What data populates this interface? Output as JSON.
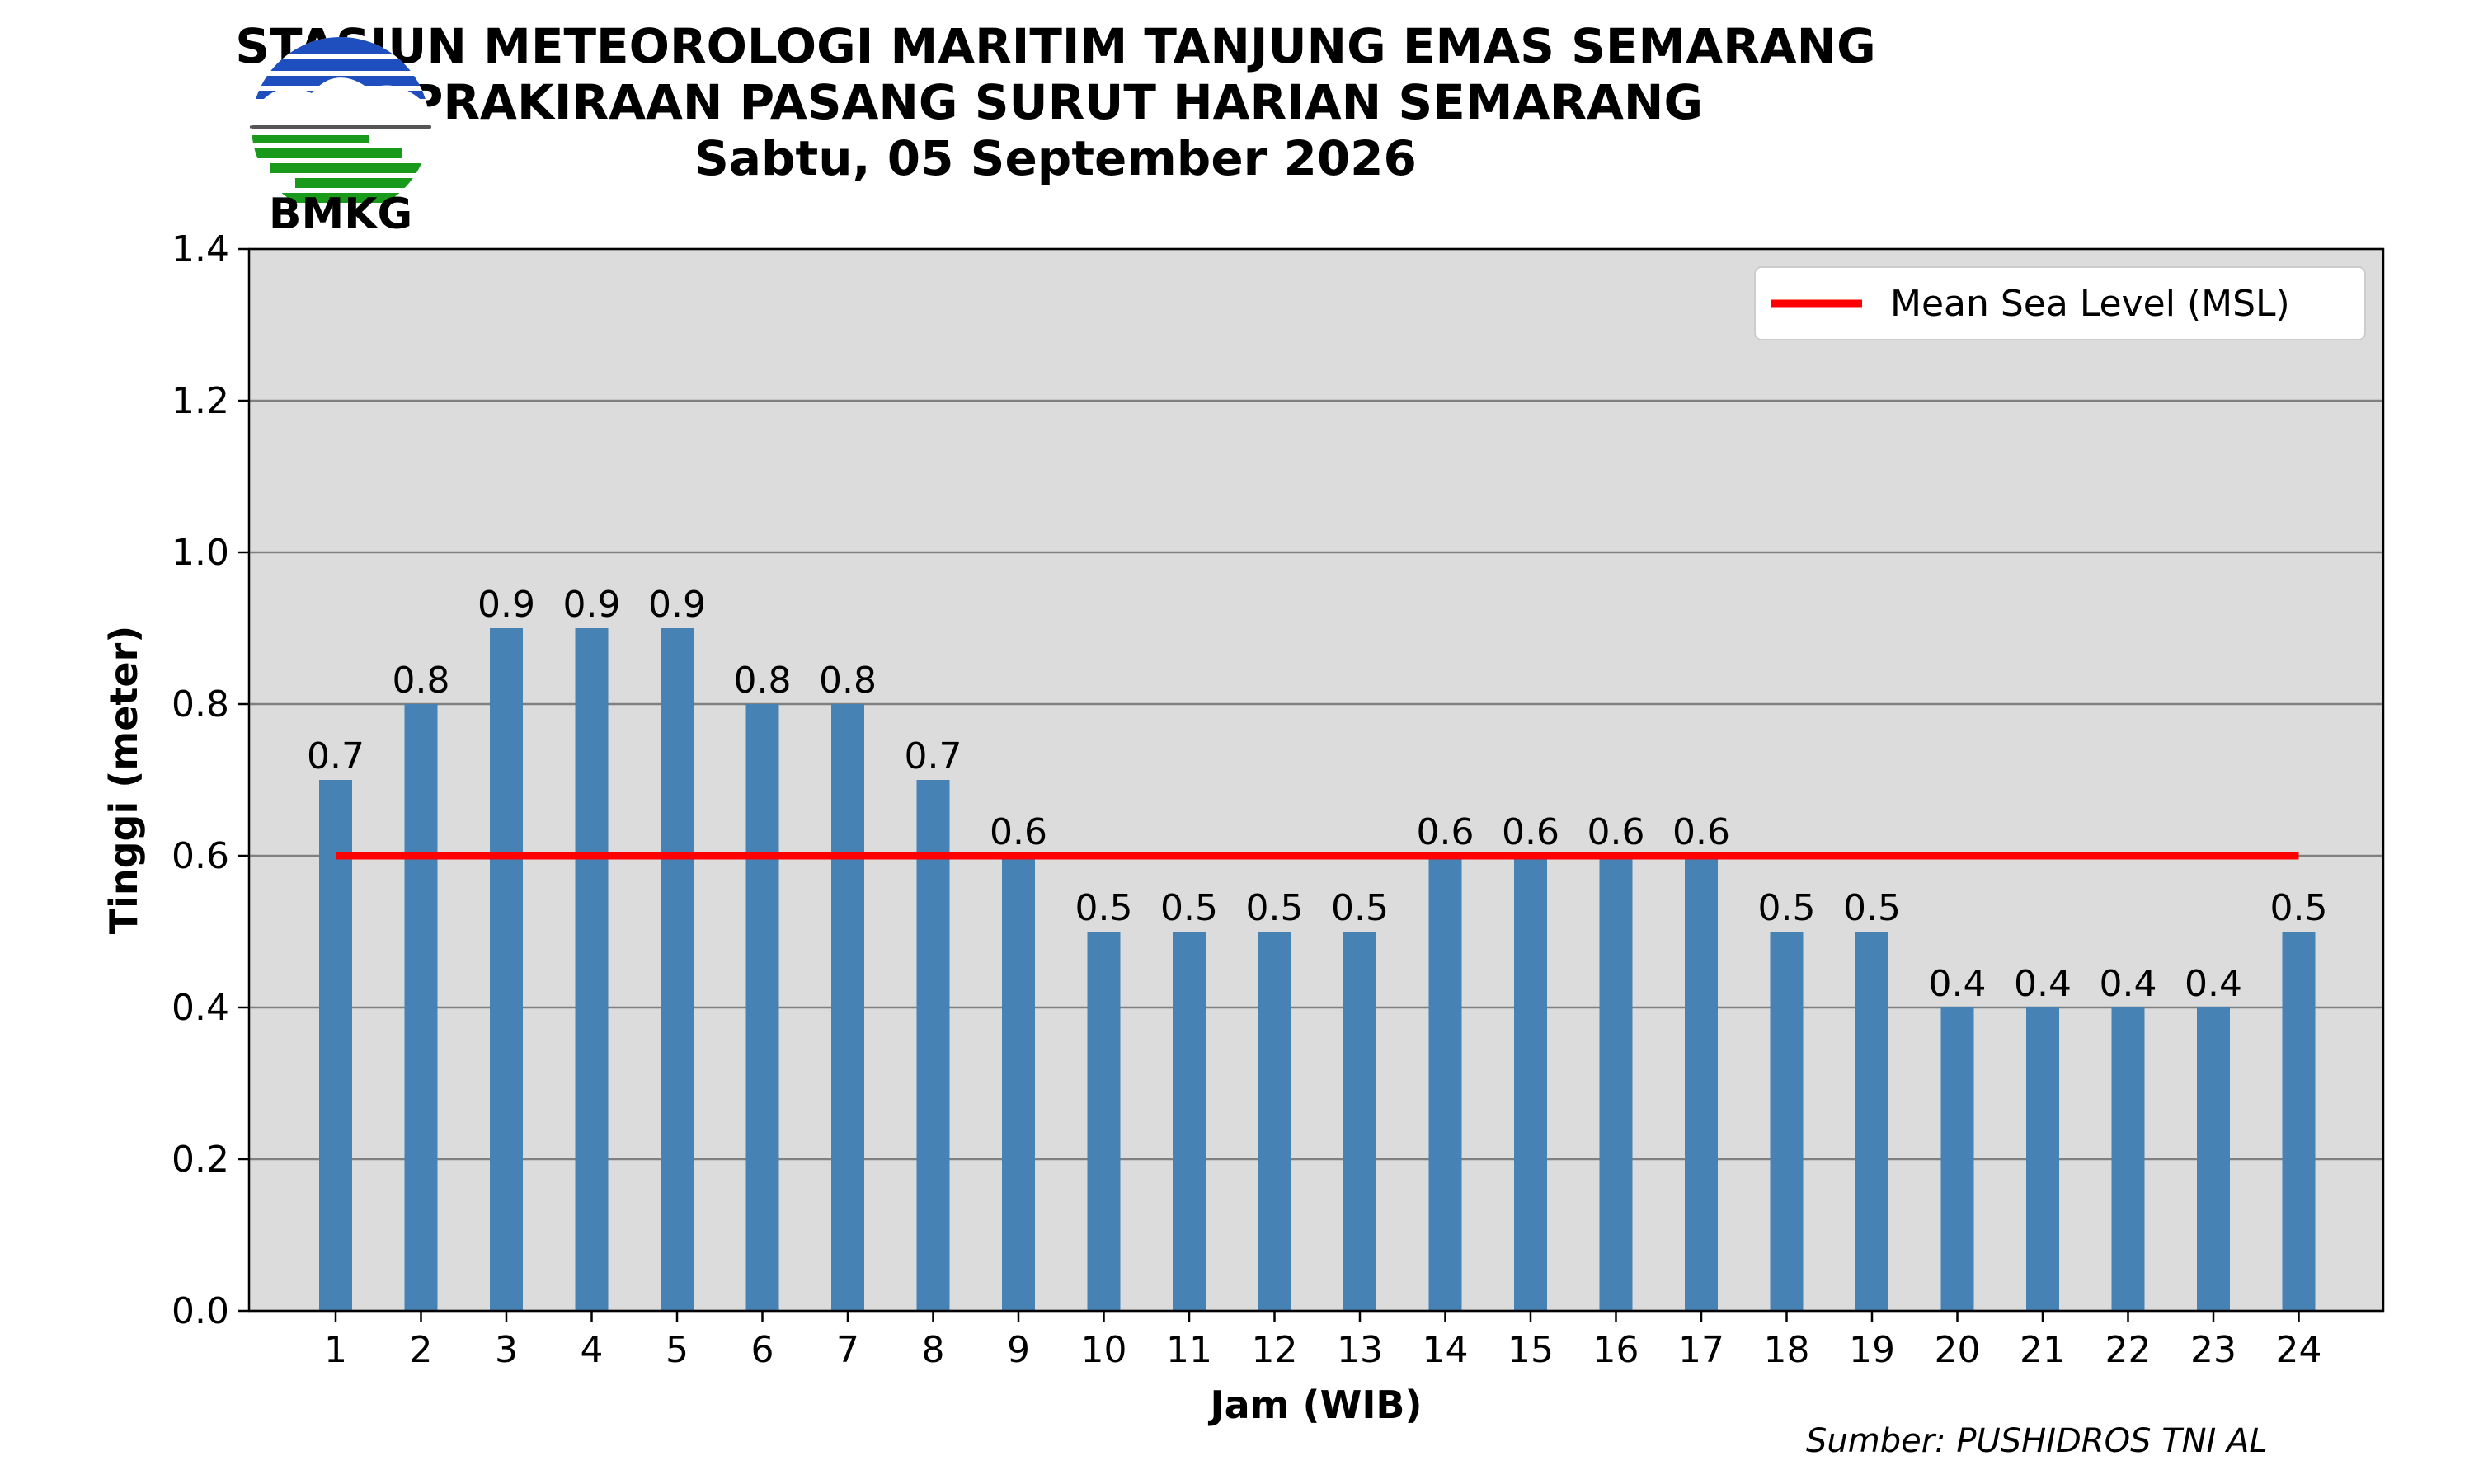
{
  "header": {
    "title_line1": "STASIUN METEOROLOGI MARITIM TANJUNG EMAS SEMARANG",
    "title_line2": "PRAKIRAAN PASANG SURUT HARIAN SEMARANG",
    "title_line3": "Sabtu, 05 September 2026",
    "logo_text": "BMKG"
  },
  "source_note": "Sumber: PUSHIDROS TNI AL",
  "colors": {
    "bar": "#4682b4",
    "msl": "#ff0000",
    "plot_bg": "#dcdcdc",
    "grid": "#808080",
    "logo_blue": "#1f4fbf",
    "logo_green": "#1a9a1a"
  },
  "chart_data": {
    "type": "bar",
    "categories": [
      "1",
      "2",
      "3",
      "4",
      "5",
      "6",
      "7",
      "8",
      "9",
      "10",
      "11",
      "12",
      "13",
      "14",
      "15",
      "16",
      "17",
      "18",
      "19",
      "20",
      "21",
      "22",
      "23",
      "24"
    ],
    "series": [
      {
        "name": "",
        "values": [
          0.7,
          0.8,
          0.9,
          0.9,
          0.9,
          0.8,
          0.8,
          0.7,
          0.6,
          0.5,
          0.5,
          0.5,
          0.5,
          0.6,
          0.6,
          0.6,
          0.6,
          0.5,
          0.5,
          0.4,
          0.4,
          0.4,
          0.4,
          0.5
        ]
      }
    ],
    "data_labels": [
      "0.7",
      "0.8",
      "0.9",
      "0.9",
      "0.9",
      "0.8",
      "0.8",
      "0.7",
      "0.6",
      "0.5",
      "0.5",
      "0.5",
      "0.5",
      "0.6",
      "0.6",
      "0.6",
      "0.6",
      "0.5",
      "0.5",
      "0.4",
      "0.4",
      "0.4",
      "0.4",
      "0.5"
    ],
    "reference_line": {
      "name": "Mean Sea Level (MSL)",
      "value": 0.6,
      "from_category": "1",
      "to_category": "24"
    },
    "xlabel": "Jam (WIB)",
    "ylabel": "Tinggi (meter)",
    "ylim": [
      0,
      1.4
    ],
    "yticks": [
      "0.0",
      "0.2",
      "0.4",
      "0.6",
      "0.8",
      "1.0",
      "1.2",
      "1.4"
    ],
    "grid": true,
    "legend_position": "top-right"
  }
}
